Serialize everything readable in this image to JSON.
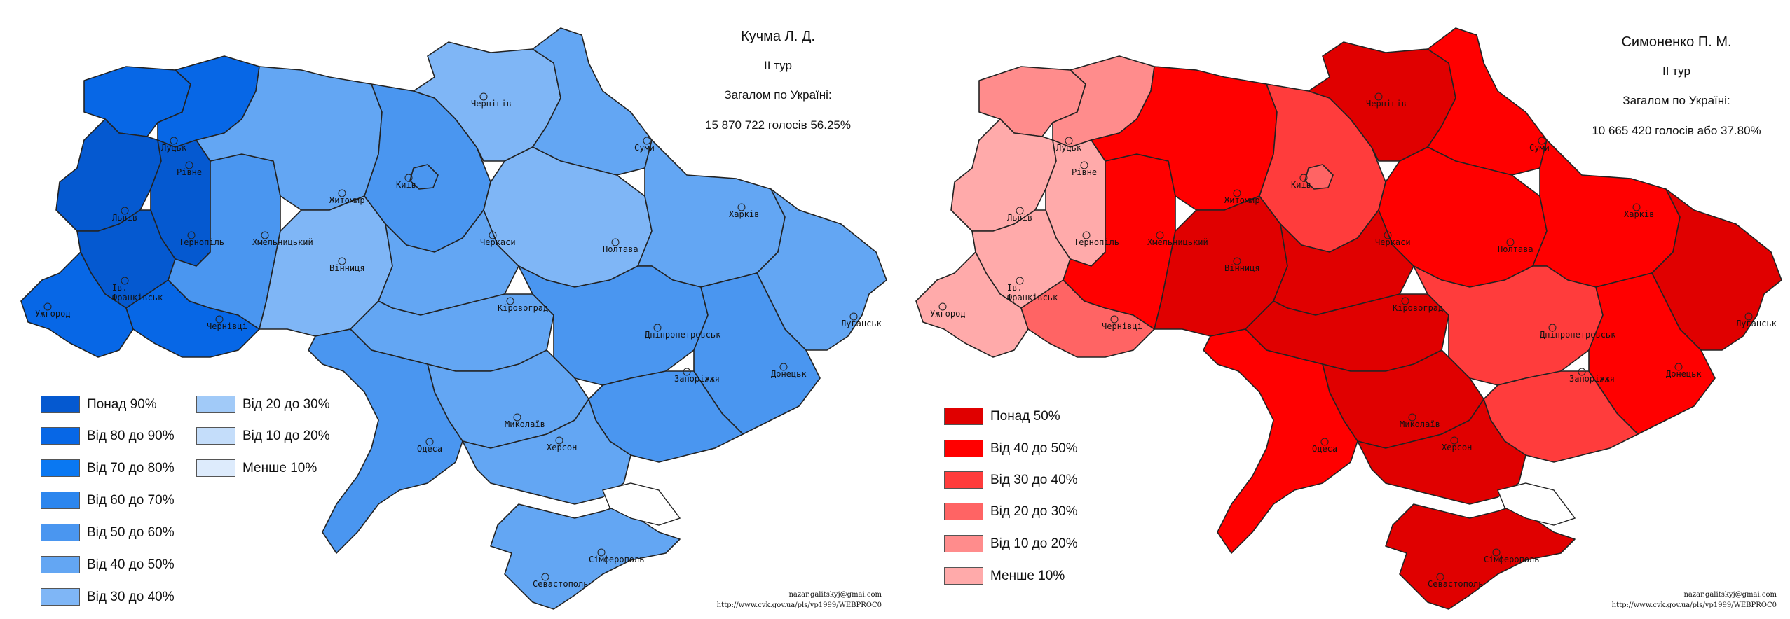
{
  "maps": [
    {
      "candidate": "Кучма Л. Д.",
      "round": "II тур",
      "total_label": "Загалом по Україні:",
      "total_value": "15 870 722 голосів 56.25%",
      "legend_col1": [
        {
          "label": "Понад 90%",
          "color": "#0559D0"
        },
        {
          "label": "Від 80 до 90%",
          "color": "#0767E6"
        },
        {
          "label": "Від 70 до 80%",
          "color": "#0A78F2"
        },
        {
          "label": "Від 60 до 70%",
          "color": "#2C86EE"
        },
        {
          "label": "Від 50 до 60%",
          "color": "#4A96F0"
        },
        {
          "label": "Від 40 до 50%",
          "color": "#63A6F3"
        },
        {
          "label": "Від 30 до 40%",
          "color": "#7FB6F6"
        }
      ],
      "legend_col2": [
        {
          "label": "Від 20 до 30%",
          "color": "#A1CAF8"
        },
        {
          "label": "Від 10 до 20%",
          "color": "#C4DDFA"
        },
        {
          "label": "Менше 10%",
          "color": "#DDEBFC"
        }
      ],
      "source_email": "nazar.galitskyj@gmai.com",
      "source_url": "http://www.cvk.gov.ua/pls/vp1999/WEBPROC0"
    },
    {
      "candidate": "Симоненко П. М.",
      "round": "II тур",
      "total_label": "Загалом по Україні:",
      "total_value": "10 665 420 голосів або 37.80%",
      "legend_col1": [
        {
          "label": "Понад 50%",
          "color": "#E00000"
        },
        {
          "label": "Від 40 до 50%",
          "color": "#FF0000"
        },
        {
          "label": "Від 30 до 40%",
          "color": "#FF3C3C"
        },
        {
          "label": "Від 20 до 30%",
          "color": "#FF6464"
        },
        {
          "label": "Від 10 до 20%",
          "color": "#FF8C8C"
        },
        {
          "label": "Менше 10%",
          "color": "#FFAAAA"
        }
      ],
      "legend_col2": [],
      "source_email": "nazar.galitskyj@gmai.com",
      "source_url": "http://www.cvk.gov.ua/pls/vp1999/WEBPROC0"
    }
  ],
  "cities": [
    "Луцьк",
    "Рівне",
    "Львів",
    "Тернопіль",
    "Хмельницький",
    "Житомир",
    "Київ",
    "Чернігів",
    "Суми",
    "Харків",
    "Полтава",
    "Черкаси",
    "Вінниця",
    "Кіровоград",
    "Дніпропетровськ",
    "Луганськ",
    "Донецьк",
    "Запоріжжя",
    "Миколаїв",
    "Херсон",
    "Одеса",
    "Сімферополь",
    "Севастополь",
    "Ужгород",
    "Ів.\nФранківськ",
    "Чернівці"
  ],
  "region_colors": {
    "kuchma": {
      "volyn": "#0767E6",
      "rivne": "#0767E6",
      "lviv": "#0559D0",
      "ternopil": "#0559D0",
      "ivano": "#0559D0",
      "zakarpattia": "#0767E6",
      "chernivtsi": "#0767E6",
      "khmelnytskyi": "#4A96F0",
      "zhytomyr": "#63A6F3",
      "vinnytsia": "#7FB6F6",
      "kyiv_obl": "#4A96F0",
      "kyiv_city": "#4A96F0",
      "chernihiv": "#7FB6F6",
      "sumy": "#63A6F3",
      "poltava": "#7FB6F6",
      "cherkasy": "#63A6F3",
      "kirovohrad": "#63A6F3",
      "kharkiv": "#63A6F3",
      "dnipro": "#4A96F0",
      "luhansk": "#63A6F3",
      "donetsk": "#4A96F0",
      "zaporizhzhia": "#4A96F0",
      "mykolaiv": "#63A6F3",
      "odesa": "#4A96F0",
      "kherson": "#63A6F3",
      "crimea": "#63A6F3"
    },
    "symonenko": {
      "volyn": "#FF8C8C",
      "rivne": "#FF8C8C",
      "lviv": "#FFAAAA",
      "ternopil": "#FFAAAA",
      "ivano": "#FFAAAA",
      "zakarpattia": "#FFAAAA",
      "chernivtsi": "#FF6464",
      "khmelnytskyi": "#FF0000",
      "zhytomyr": "#FF0000",
      "vinnytsia": "#E00000",
      "kyiv_obl": "#FF3C3C",
      "kyiv_city": "#FF6464",
      "chernihiv": "#E00000",
      "sumy": "#FF0000",
      "poltava": "#FF0000",
      "cherkasy": "#E00000",
      "kirovohrad": "#E00000",
      "kharkiv": "#FF0000",
      "dnipro": "#FF3C3C",
      "luhansk": "#E00000",
      "donetsk": "#FF0000",
      "zaporizhzhia": "#FF3C3C",
      "mykolaiv": "#E00000",
      "odesa": "#FF0000",
      "kherson": "#E00000",
      "crimea": "#E00000"
    }
  }
}
